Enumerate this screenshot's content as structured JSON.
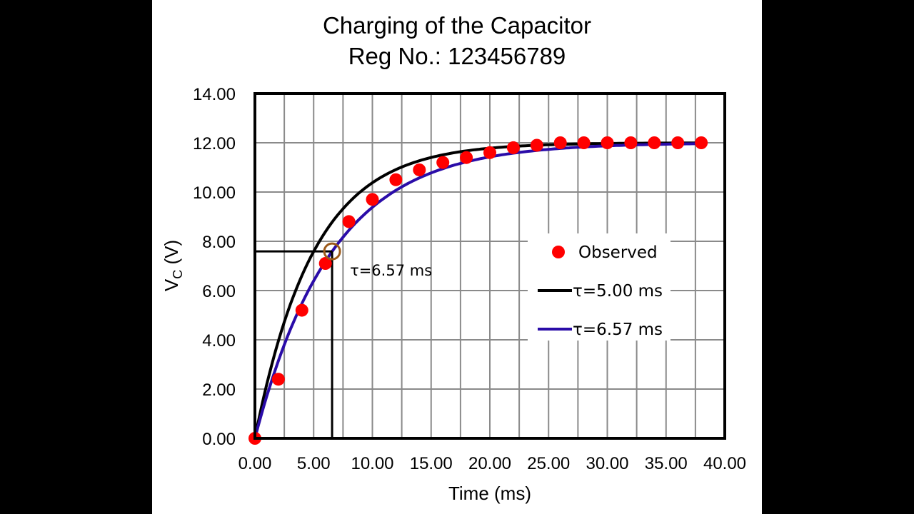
{
  "chart_data": {
    "type": "scatter",
    "title": "Charging of the Capacitor",
    "subtitle": "Reg No.: 123456789",
    "xlabel": "Time (ms)",
    "ylabel_main": "V",
    "ylabel_sub": "C",
    "ylabel_unit": " (V)",
    "xlim": [
      0,
      40
    ],
    "ylim": [
      0,
      14
    ],
    "grid": true,
    "x_ticks": [
      "0.00",
      "5.00",
      "10.00",
      "15.00",
      "20.00",
      "25.00",
      "30.00",
      "35.00",
      "40.00"
    ],
    "y_ticks": [
      "0.00",
      "2.00",
      "4.00",
      "6.00",
      "8.00",
      "10.00",
      "12.00",
      "14.00"
    ],
    "legend_position": "center-right",
    "series": [
      {
        "name": "Observed",
        "kind": "points",
        "color": "#ff0000",
        "x": [
          0,
          2,
          4,
          6,
          8,
          10,
          12,
          14,
          16,
          18,
          20,
          22,
          24,
          26,
          28,
          30,
          32,
          34,
          36,
          38
        ],
        "y": [
          0,
          2.4,
          5.2,
          7.1,
          8.8,
          9.7,
          10.5,
          10.9,
          11.2,
          11.4,
          11.6,
          11.8,
          11.9,
          12.0,
          12.0,
          12.0,
          12.0,
          12.0,
          12.0,
          12.0
        ]
      },
      {
        "name": "τ=5.00 ms",
        "kind": "curve",
        "color": "#000000",
        "V0": 12,
        "tau": 5.0
      },
      {
        "name": "τ=6.57 ms",
        "kind": "curve",
        "color": "#2a0ca8",
        "V0": 12,
        "tau": 6.57
      }
    ],
    "annotation": {
      "label": "τ=6.57 ms",
      "x": 6.57,
      "y": 7.59,
      "marker_color": "#9c5a1a"
    }
  }
}
